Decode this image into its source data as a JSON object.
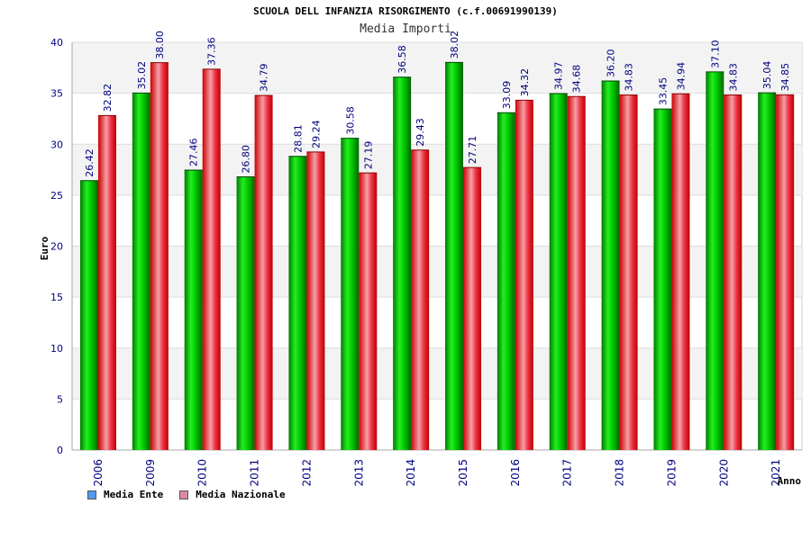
{
  "chart_data": {
    "type": "bar",
    "title": "SCUOLA DELL INFANZIA RISORGIMENTO (c.f.00691990139)",
    "subtitle": "Media Importi",
    "xlabel": "Anno",
    "ylabel": "Euro",
    "ylim": [
      0,
      40
    ],
    "yticks": [
      0,
      5,
      10,
      15,
      20,
      25,
      30,
      35,
      40
    ],
    "grid": true,
    "legend_position": "bottom-left",
    "categories": [
      "2006",
      "2009",
      "2010",
      "2011",
      "2012",
      "2013",
      "2014",
      "2015",
      "2016",
      "2017",
      "2018",
      "2019",
      "2020",
      "2021"
    ],
    "series": [
      {
        "name": "Media Ente",
        "color": "#00cc00",
        "legend_color": "#5599ee",
        "values": [
          26.42,
          35.02,
          27.46,
          26.8,
          28.81,
          30.58,
          36.58,
          38.02,
          33.09,
          34.97,
          36.2,
          33.45,
          37.1,
          35.04
        ],
        "labels": [
          "26.42",
          "35.02",
          "27.46",
          "26.80",
          "28.81",
          "30.58",
          "36.58",
          "38.02",
          "33.09",
          "34.97",
          "36.20",
          "33.45",
          "37.10",
          "35.04"
        ]
      },
      {
        "name": "Media Nazionale",
        "color": "#ee1122",
        "legend_color": "#dd88aa",
        "values": [
          32.82,
          38.0,
          37.36,
          34.79,
          29.24,
          27.19,
          29.43,
          27.71,
          34.32,
          34.68,
          34.83,
          34.94,
          34.83,
          34.85
        ],
        "labels": [
          "32.82",
          "38.00",
          "37.36",
          "34.79",
          "29.24",
          "27.19",
          "29.43",
          "27.71",
          "34.32",
          "34.68",
          "34.83",
          "34.94",
          "34.83",
          "34.85"
        ]
      }
    ]
  }
}
